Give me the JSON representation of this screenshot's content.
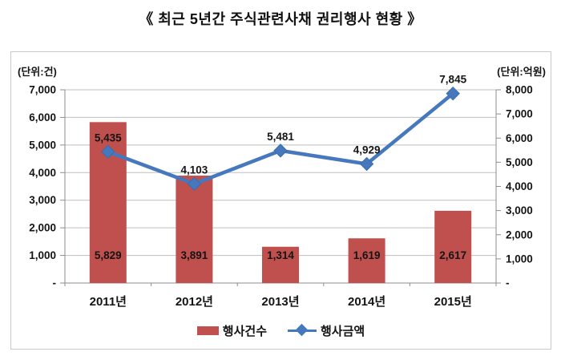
{
  "title": "《 최근 5년간 주식관련사채 권리행사 현황 》",
  "chart_data": {
    "type": "bar",
    "subtype": "combo-bar-line-dual-axis",
    "categories": [
      "2011년",
      "2012년",
      "2013년",
      "2014년",
      "2015년"
    ],
    "series": [
      {
        "name": "행사건수",
        "type": "bar",
        "axis": "left",
        "values": [
          5829,
          3891,
          1314,
          1619,
          2617
        ],
        "labels": [
          "5,829",
          "3,891",
          "1,314",
          "1,619",
          "2,617"
        ],
        "label_color": "#ffffff",
        "color": "#c0504d"
      },
      {
        "name": "행사금액",
        "type": "line",
        "axis": "right",
        "marker": "diamond",
        "values": [
          5435,
          4103,
          5481,
          4929,
          7845
        ],
        "labels": [
          "5,435",
          "4,103",
          "5,481",
          "4,929",
          "7,845"
        ],
        "label_color": "#141414",
        "color": "#4678be"
      }
    ],
    "left_axis": {
      "unit_label": "(단위:건)",
      "min": 0,
      "max": 7000,
      "step": 1000,
      "tick_labels": [
        "-",
        "1,000",
        "2,000",
        "3,000",
        "4,000",
        "5,000",
        "6,000",
        "7,000"
      ],
      "zero_label": "-"
    },
    "right_axis": {
      "unit_label": "(단위:억원)",
      "min": 0,
      "max": 8000,
      "step": 1000,
      "tick_labels": [
        "-",
        "1,000",
        "2,000",
        "3,000",
        "4,000",
        "5,000",
        "6,000",
        "7,000",
        "8,000"
      ],
      "zero_label": "-"
    },
    "grid": "horizontal gridlines at primary (left) axis major units",
    "legend_position": "bottom center"
  },
  "colors": {
    "bar": "#c0504d",
    "line": "#4678be",
    "marker_stroke": "#3d6cab",
    "gridline": "#bfbfbf",
    "axis": "#8e8e8e",
    "text": "#141414",
    "bar_label": "#ffffff",
    "box_border": "#c9c9c9"
  }
}
